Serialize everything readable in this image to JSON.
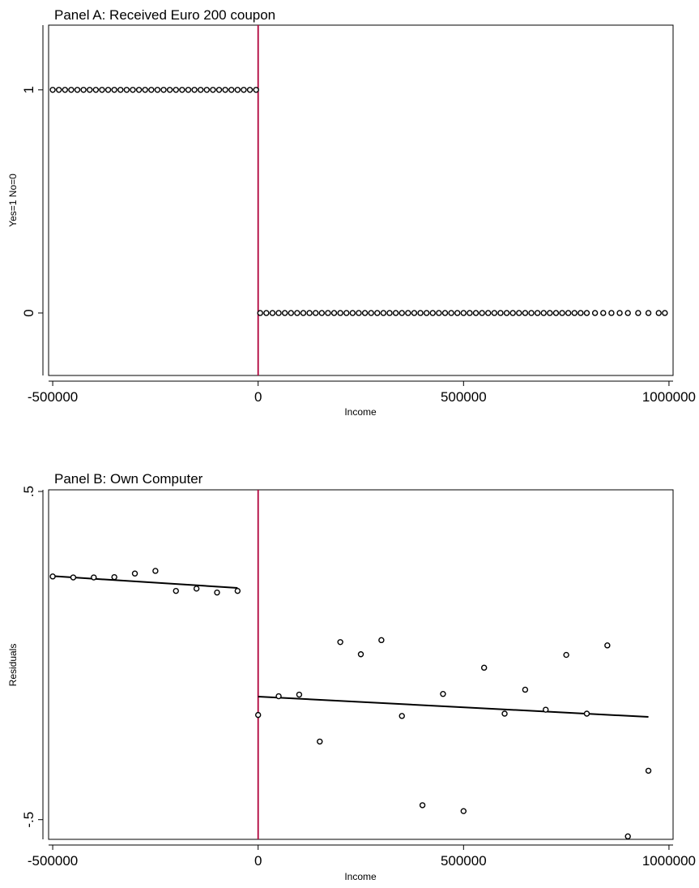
{
  "chart_data": [
    {
      "type": "scatter",
      "title": "Panel A: Received Euro 200 coupon",
      "xlabel": "Income",
      "ylabel": "Yes=1 No=0",
      "xlim": [
        -510000,
        1010000
      ],
      "ylim": [
        -0.28,
        1.29
      ],
      "xticks": [
        -500000,
        0,
        500000,
        1000000
      ],
      "xtick_labels": [
        "-500000",
        "0",
        "500000",
        "1000000"
      ],
      "yticks": [
        0,
        1
      ],
      "ytick_labels": [
        "0",
        "1"
      ],
      "cutoff_x": 0,
      "cutoff_color": "#b0003a",
      "grid": false,
      "legend": "none",
      "series": [
        {
          "marker": "hollow-circle",
          "x": [
            -500000,
            -485000,
            -470000,
            -455000,
            -440000,
            -425000,
            -410000,
            -395000,
            -380000,
            -365000,
            -350000,
            -335000,
            -320000,
            -305000,
            -290000,
            -275000,
            -260000,
            -245000,
            -230000,
            -215000,
            -200000,
            -185000,
            -170000,
            -155000,
            -140000,
            -125000,
            -110000,
            -95000,
            -80000,
            -65000,
            -50000,
            -35000,
            -20000,
            -5000,
            5000,
            20000,
            35000,
            50000,
            65000,
            80000,
            95000,
            110000,
            125000,
            140000,
            155000,
            170000,
            185000,
            200000,
            215000,
            230000,
            245000,
            260000,
            275000,
            290000,
            305000,
            320000,
            335000,
            350000,
            365000,
            380000,
            395000,
            410000,
            425000,
            440000,
            455000,
            470000,
            485000,
            500000,
            515000,
            530000,
            545000,
            560000,
            575000,
            590000,
            605000,
            620000,
            635000,
            650000,
            665000,
            680000,
            695000,
            710000,
            725000,
            740000,
            755000,
            770000,
            785000,
            800000,
            820000,
            840000,
            860000,
            880000,
            900000,
            925000,
            950000,
            975000,
            990000
          ],
          "y": [
            1,
            1,
            1,
            1,
            1,
            1,
            1,
            1,
            1,
            1,
            1,
            1,
            1,
            1,
            1,
            1,
            1,
            1,
            1,
            1,
            1,
            1,
            1,
            1,
            1,
            1,
            1,
            1,
            1,
            1,
            1,
            1,
            1,
            1,
            0,
            0,
            0,
            0,
            0,
            0,
            0,
            0,
            0,
            0,
            0,
            0,
            0,
            0,
            0,
            0,
            0,
            0,
            0,
            0,
            0,
            0,
            0,
            0,
            0,
            0,
            0,
            0,
            0,
            0,
            0,
            0,
            0,
            0,
            0,
            0,
            0,
            0,
            0,
            0,
            0,
            0,
            0,
            0,
            0,
            0,
            0,
            0,
            0,
            0,
            0,
            0,
            0,
            0,
            0,
            0,
            0,
            0,
            0,
            0,
            0,
            0,
            0
          ]
        }
      ]
    },
    {
      "type": "scatter",
      "title": "Panel B: Own Computer",
      "xlabel": "Income",
      "ylabel": "Residuals",
      "xlim": [
        -510000,
        1010000
      ],
      "ylim": [
        -0.56,
        0.505
      ],
      "xticks": [
        -500000,
        0,
        500000,
        1000000
      ],
      "xtick_labels": [
        "-500000",
        "0",
        "500000",
        "1000000"
      ],
      "yticks": [
        -0.5,
        0.5
      ],
      "ytick_labels": [
        "-.5",
        ".5"
      ],
      "cutoff_x": 0,
      "cutoff_color": "#b0003a",
      "grid": false,
      "legend": "none",
      "series": [
        {
          "marker": "hollow-circle",
          "x": [
            -500000,
            -450000,
            -400000,
            -350000,
            -300000,
            -250000,
            -200000,
            -150000,
            -100000,
            -50000,
            0,
            50000,
            100000,
            150000,
            200000,
            250000,
            300000,
            350000,
            400000,
            450000,
            500000,
            550000,
            600000,
            650000,
            700000,
            750000,
            800000,
            850000,
            900000,
            950000
          ],
          "y": [
            0.241,
            0.238,
            0.238,
            0.239,
            0.25,
            0.258,
            0.197,
            0.204,
            0.192,
            0.197,
            -0.181,
            -0.124,
            -0.119,
            -0.262,
            0.041,
            0.004,
            0.047,
            -0.184,
            -0.456,
            -0.117,
            -0.474,
            -0.037,
            -0.177,
            -0.104,
            -0.165,
            0.002,
            -0.177,
            0.031,
            -0.551,
            -0.351
          ]
        },
        {
          "kind": "fit-line",
          "segments": [
            {
              "x": [
                -500000,
                -50000
              ],
              "y": [
                0.242,
                0.206
              ]
            },
            {
              "x": [
                0,
                950000
              ],
              "y": [
                -0.125,
                -0.187
              ]
            }
          ]
        }
      ]
    }
  ]
}
